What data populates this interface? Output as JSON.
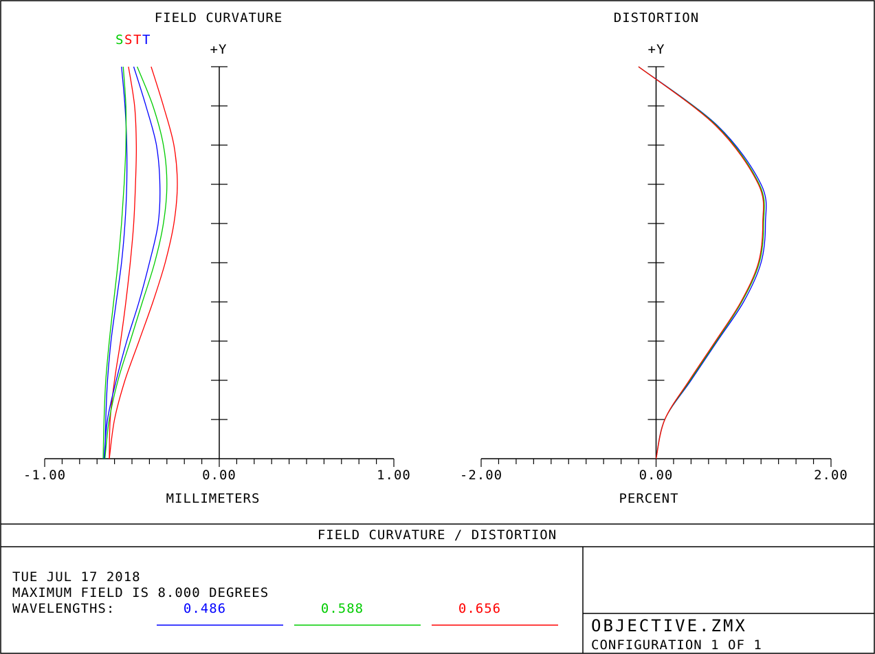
{
  "chart_data": [
    {
      "type": "line",
      "title": "FIELD CURVATURE",
      "xlabel": "MILLIMETERS",
      "ylabel": "+Y",
      "xlim": [
        -1.0,
        1.0
      ],
      "ylim": [
        0,
        1
      ],
      "x_tick_labels": [
        "-1.00",
        "0.00",
        "1.00"
      ],
      "legend_marks": [
        {
          "label": "S",
          "color": "#00cc00"
        },
        {
          "label": "S",
          "color": "#ff0000"
        },
        {
          "label": "T",
          "color": "#ff0000"
        },
        {
          "label": "T",
          "color": "#0000ff"
        }
      ],
      "series": [
        {
          "name": "S",
          "wavelength": "0.486",
          "color": "#0000ff",
          "points": [
            [
              -0.56,
              1.0
            ],
            [
              -0.54,
              0.9
            ],
            [
              -0.53,
              0.8
            ],
            [
              -0.53,
              0.7
            ],
            [
              -0.54,
              0.6
            ],
            [
              -0.56,
              0.5
            ],
            [
              -0.59,
              0.4
            ],
            [
              -0.62,
              0.3
            ],
            [
              -0.64,
              0.2
            ],
            [
              -0.65,
              0.1
            ],
            [
              -0.655,
              0.0
            ]
          ]
        },
        {
          "name": "S",
          "wavelength": "0.588",
          "color": "#00cc00",
          "points": [
            [
              -0.55,
              1.0
            ],
            [
              -0.535,
              0.9
            ],
            [
              -0.535,
              0.8
            ],
            [
              -0.545,
              0.7
            ],
            [
              -0.56,
              0.6
            ],
            [
              -0.58,
              0.5
            ],
            [
              -0.605,
              0.4
            ],
            [
              -0.63,
              0.3
            ],
            [
              -0.65,
              0.2
            ],
            [
              -0.66,
              0.1
            ],
            [
              -0.665,
              0.0
            ]
          ]
        },
        {
          "name": "S",
          "wavelength": "0.656",
          "color": "#ff0000",
          "points": [
            [
              -0.52,
              1.0
            ],
            [
              -0.485,
              0.9
            ],
            [
              -0.475,
              0.8
            ],
            [
              -0.48,
              0.7
            ],
            [
              -0.49,
              0.6
            ],
            [
              -0.51,
              0.5
            ],
            [
              -0.535,
              0.4
            ],
            [
              -0.565,
              0.3
            ],
            [
              -0.6,
              0.2
            ],
            [
              -0.625,
              0.1
            ],
            [
              -0.63,
              0.0
            ]
          ]
        },
        {
          "name": "T",
          "wavelength": "0.486",
          "color": "#0000ff",
          "points": [
            [
              -0.49,
              1.0
            ],
            [
              -0.42,
              0.9
            ],
            [
              -0.36,
              0.8
            ],
            [
              -0.34,
              0.7
            ],
            [
              -0.35,
              0.6
            ],
            [
              -0.4,
              0.5
            ],
            [
              -0.46,
              0.4
            ],
            [
              -0.53,
              0.3
            ],
            [
              -0.59,
              0.2
            ],
            [
              -0.64,
              0.1
            ],
            [
              -0.66,
              0.0
            ]
          ]
        },
        {
          "name": "T",
          "wavelength": "0.588",
          "color": "#00cc00",
          "points": [
            [
              -0.47,
              1.0
            ],
            [
              -0.38,
              0.9
            ],
            [
              -0.32,
              0.8
            ],
            [
              -0.3,
              0.7
            ],
            [
              -0.32,
              0.6
            ],
            [
              -0.37,
              0.5
            ],
            [
              -0.44,
              0.4
            ],
            [
              -0.51,
              0.3
            ],
            [
              -0.58,
              0.2
            ],
            [
              -0.63,
              0.1
            ],
            [
              -0.655,
              0.0
            ]
          ]
        },
        {
          "name": "T",
          "wavelength": "0.656",
          "color": "#ff0000",
          "points": [
            [
              -0.39,
              1.0
            ],
            [
              -0.32,
              0.9
            ],
            [
              -0.26,
              0.8
            ],
            [
              -0.24,
              0.7
            ],
            [
              -0.26,
              0.6
            ],
            [
              -0.31,
              0.5
            ],
            [
              -0.38,
              0.4
            ],
            [
              -0.46,
              0.3
            ],
            [
              -0.54,
              0.2
            ],
            [
              -0.6,
              0.1
            ],
            [
              -0.63,
              0.0
            ]
          ]
        }
      ]
    },
    {
      "type": "line",
      "title": "DISTORTION",
      "xlabel": "PERCENT",
      "ylabel": "+Y",
      "xlim": [
        -2.0,
        2.0
      ],
      "ylim": [
        0,
        1
      ],
      "x_tick_labels": [
        "-2.00",
        "0.00",
        "2.00"
      ],
      "series": [
        {
          "name": "",
          "wavelength": "0.486",
          "color": "#0000ff",
          "points": [
            [
              -0.2,
              1.0
            ],
            [
              0.7,
              0.85
            ],
            [
              1.2,
              0.7
            ],
            [
              1.25,
              0.6
            ],
            [
              1.2,
              0.5
            ],
            [
              1.0,
              0.4
            ],
            [
              0.7,
              0.3
            ],
            [
              0.4,
              0.2
            ],
            [
              0.1,
              0.1
            ],
            [
              0.0,
              0.0
            ]
          ]
        },
        {
          "name": "",
          "wavelength": "0.588",
          "color": "#00cc00",
          "points": [
            [
              -0.2,
              1.0
            ],
            [
              0.69,
              0.85
            ],
            [
              1.18,
              0.7
            ],
            [
              1.23,
              0.6
            ],
            [
              1.18,
              0.5
            ],
            [
              0.98,
              0.4
            ],
            [
              0.69,
              0.3
            ],
            [
              0.39,
              0.2
            ],
            [
              0.1,
              0.1
            ],
            [
              0.0,
              0.0
            ]
          ]
        },
        {
          "name": "",
          "wavelength": "0.656",
          "color": "#ff0000",
          "points": [
            [
              -0.2,
              1.0
            ],
            [
              0.68,
              0.85
            ],
            [
              1.17,
              0.7
            ],
            [
              1.22,
              0.6
            ],
            [
              1.17,
              0.5
            ],
            [
              0.97,
              0.4
            ],
            [
              0.68,
              0.3
            ],
            [
              0.38,
              0.2
            ],
            [
              0.1,
              0.1
            ],
            [
              0.0,
              0.0
            ]
          ]
        }
      ]
    }
  ],
  "footer": {
    "title": "FIELD CURVATURE / DISTORTION",
    "date": "TUE JUL 17 2018",
    "max_field": "MAXIMUM FIELD IS 8.000 DEGREES",
    "wavelengths_label": "WAVELENGTHS:",
    "wavelengths": [
      {
        "value": "0.486",
        "color": "#0000ff"
      },
      {
        "value": "0.588",
        "color": "#00cc00"
      },
      {
        "value": "0.656",
        "color": "#ff0000"
      }
    ],
    "file_name": "OBJECTIVE.ZMX",
    "configuration": "CONFIGURATION 1 OF 1"
  }
}
